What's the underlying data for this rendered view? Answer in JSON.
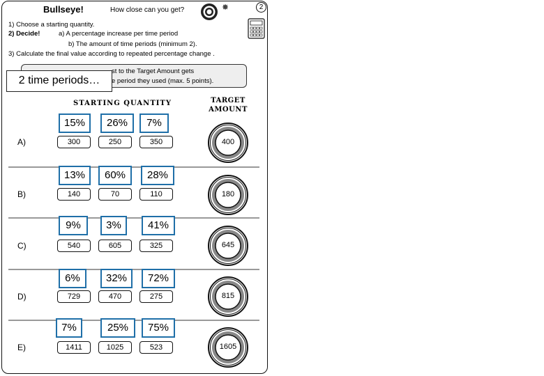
{
  "header": {
    "title": "Bullseye!",
    "subtitle": "How close can you get?",
    "badge": "2"
  },
  "instructions": {
    "line1": "1) Choose  a starting quantity.",
    "line2a": "2) Decide!",
    "line2b": "a)  A percentage increase  per time period",
    "line3": "b)  The amount of time periods (minimum 2).",
    "line4": "3) Calculate  the final value according to repeated percentage change ."
  },
  "callout": {
    "line1_visible": "st to the Target Amount  gets",
    "line2_visible": "e period they used   (max. 5 points).",
    "overlay_text": "2 time periods…"
  },
  "columns": {
    "starting_quantity": "Starting Quantity",
    "target_line1": "Target",
    "target_line2": "Amount"
  },
  "rows": [
    {
      "label": "A)",
      "values": [
        "300",
        "250",
        "350"
      ],
      "percents": [
        "15%",
        "26%",
        "7%"
      ],
      "target": "400"
    },
    {
      "label": "B)",
      "values": [
        "140",
        "70",
        "110"
      ],
      "percents": [
        "13%",
        "60%",
        "28%"
      ],
      "target": "180"
    },
    {
      "label": "C)",
      "values": [
        "540",
        "605",
        "325"
      ],
      "percents": [
        "9%",
        "3%",
        "41%"
      ],
      "target": "645"
    },
    {
      "label": "D)",
      "values": [
        "729",
        "470",
        "275"
      ],
      "percents": [
        "6%",
        "32%",
        "72%"
      ],
      "target": "815"
    },
    {
      "label": "E)",
      "values": [
        "1411",
        "1025",
        "523"
      ],
      "percents": [
        "7%",
        "25%",
        "75%"
      ],
      "target": "1605"
    }
  ],
  "colors": {
    "percent_border": "#1f6fa8",
    "target_ring": "#888888",
    "divider": "#999999"
  },
  "icons": {
    "header_target": "bullseye-icon",
    "calculator": "calculator-icon"
  }
}
